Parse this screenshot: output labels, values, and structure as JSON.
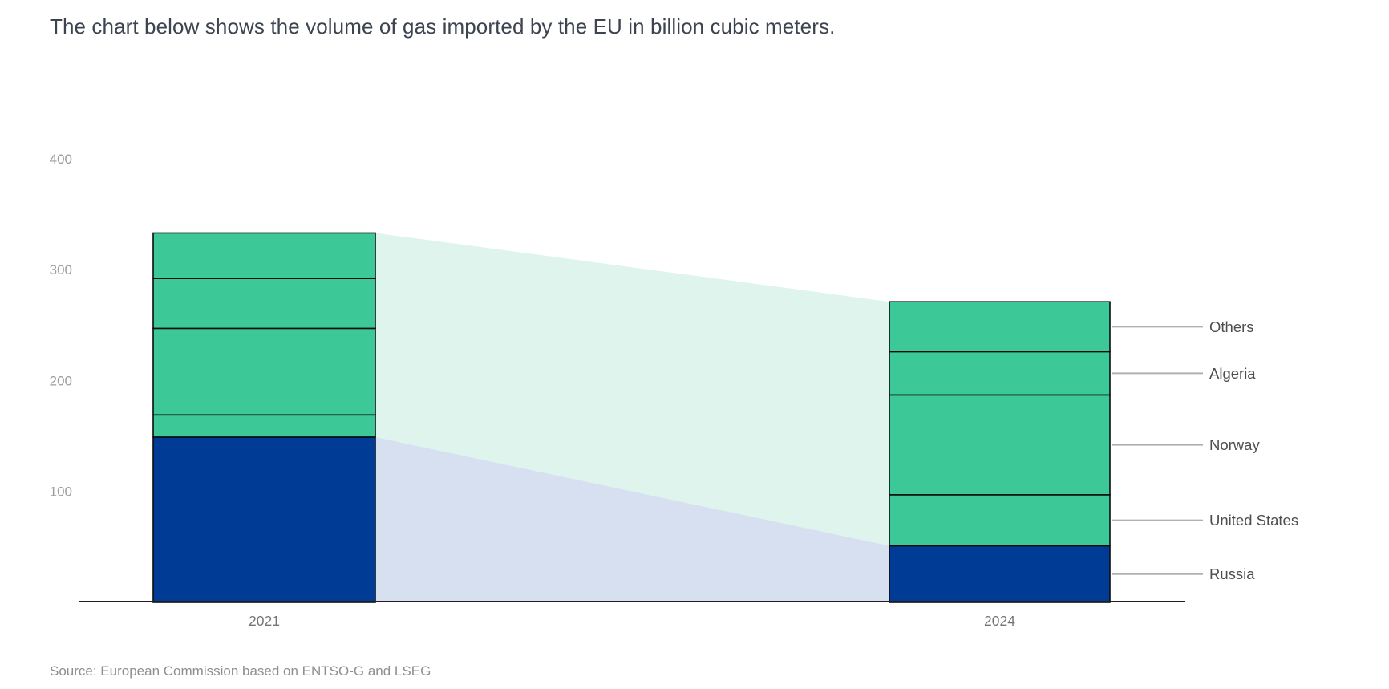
{
  "title": "The chart below shows the volume of gas imported by the EU in billion cubic meters.",
  "source": "Source: European Commission based on ENTSO-G and LSEG",
  "chart_data": {
    "type": "bar",
    "variant": "stacked-columns-with-flow-bands",
    "title": "The chart below shows the volume of gas imported by the EU in billion cubic meters.",
    "unit": "billion cubic meters",
    "categories": [
      "2021",
      "2024"
    ],
    "series": [
      {
        "name": "Russia",
        "values": [
          149,
          51
        ],
        "color": "#003c96"
      },
      {
        "name": "United States",
        "values": [
          20,
          46
        ],
        "color": "#3dc997"
      },
      {
        "name": "Norway",
        "values": [
          78,
          90
        ],
        "color": "#3dc997"
      },
      {
        "name": "Algeria",
        "values": [
          45,
          39
        ],
        "color": "#3dc997"
      },
      {
        "name": "Others",
        "values": [
          41,
          45
        ],
        "color": "#3dc997"
      }
    ],
    "totals": [
      333,
      271
    ],
    "ylim": [
      0,
      400
    ],
    "yticks": [
      100,
      200,
      300,
      400
    ],
    "grid": false,
    "legend_position": "right-side-leader-labels",
    "right_labels_top_to_bottom": [
      "Others",
      "Algeria",
      "Norway",
      "United States",
      "Russia"
    ],
    "flow_bands": [
      {
        "name": "non-russia-flow-band",
        "color": "#def4ec",
        "connects": "bar tops down to top of Russia segment"
      },
      {
        "name": "russia-flow-band",
        "color": "#d7e0f0",
        "connects": "top of Russia segment down to baseline"
      }
    ],
    "colors": {
      "green_segment": "#3dc997",
      "russia_segment": "#003c96",
      "mint_band": "#def4ec",
      "lavender_band": "#d7e0f0",
      "segment_border": "#0d0d0d",
      "axis_line": "#1f1f1f",
      "y_tick_label": "#9d9d9d",
      "x_tick_label": "#757575",
      "right_label": "#4e4e4e",
      "leader_line": "#b0b0b0",
      "title_text": "#3c4450",
      "source_text": "#8f8f8f"
    }
  }
}
